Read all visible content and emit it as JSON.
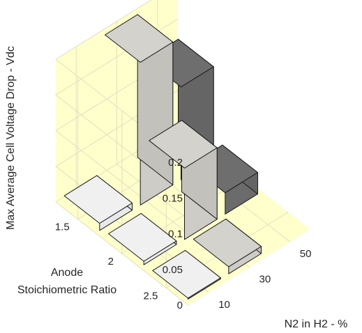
{
  "chart_data": {
    "type": "bar3d",
    "title": "",
    "zlabel": "Max Average Cell Voltage Drop - Vdc",
    "xlabel": "N2 in H2 - %",
    "ylabel_lines": [
      "Anode",
      "Stoichiometric Ratio"
    ],
    "x_ticks": [
      "10",
      "30",
      "50"
    ],
    "y_ticks": [
      "1.5",
      "2",
      "2.5"
    ],
    "z_ticks": [
      "0",
      "0.05",
      "0.1",
      "0.15",
      "0.2"
    ],
    "zlim": [
      0,
      0.2
    ],
    "bars": [
      {
        "n2": "10",
        "stoich": "1.5",
        "value": 0.01,
        "color": "#f0f0f0"
      },
      {
        "n2": "10",
        "stoich": "2",
        "value": 0.005,
        "color": "#f0f0f0"
      },
      {
        "n2": "10",
        "stoich": "2.5",
        "value": 0.0,
        "color": "#f0f0f0"
      },
      {
        "n2": "30",
        "stoich": "1.5",
        "value": 0.2,
        "color": "#d4d2cc"
      },
      {
        "n2": "30",
        "stoich": "2",
        "value": 0.1,
        "color": "#d4d2cc"
      },
      {
        "n2": "30",
        "stoich": "2.5",
        "value": 0.01,
        "color": "#d4d2cc"
      },
      {
        "n2": "50",
        "stoich": "1.5",
        "value": 0.13,
        "color": "#6e6e6e"
      },
      {
        "n2": "50",
        "stoich": "2",
        "value": 0.03,
        "color": "#6e6e6e"
      }
    ],
    "grid": true,
    "pane_color": "#ffffcc"
  }
}
